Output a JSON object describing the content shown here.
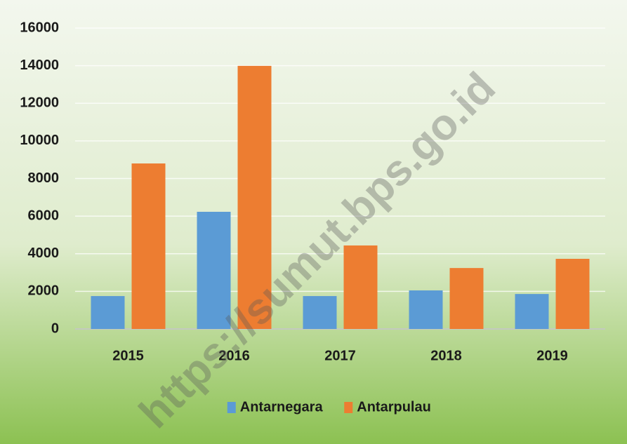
{
  "chart_data": {
    "type": "bar",
    "categories": [
      "2015",
      "2016",
      "2017",
      "2018",
      "2019"
    ],
    "series": [
      {
        "name": "Antarnegara",
        "color": "#5b9bd5",
        "values": [
          1750,
          6230,
          1750,
          2050,
          1860
        ]
      },
      {
        "name": "Antarpulau",
        "color": "#ed7d31",
        "values": [
          8800,
          13990,
          4440,
          3240,
          3730
        ]
      }
    ],
    "ylim": [
      0,
      16000
    ],
    "yticks": [
      0,
      2000,
      4000,
      6000,
      8000,
      10000,
      12000,
      14000,
      16000
    ],
    "grid": true,
    "legend": "bottom",
    "watermark": "https://sumut.bps.go.id"
  }
}
